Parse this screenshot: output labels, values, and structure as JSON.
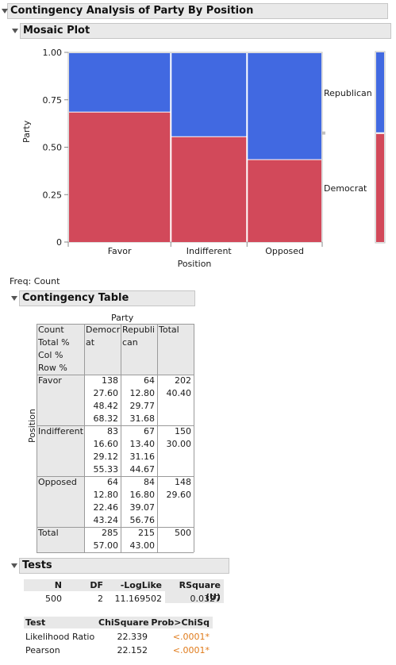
{
  "report": {
    "title": "Contingency Analysis of Party By Position",
    "mosaic": {
      "header": "Mosaic Plot",
      "y_axis_label": "Party",
      "x_axis_label": "Position",
      "y_ticks": [
        "1.00",
        "0.75",
        "0.50",
        "0.25",
        "0"
      ],
      "legend_labels": [
        "Republican",
        "Democrat"
      ],
      "colors": {
        "Democrat": "#d2495a",
        "Republican": "#4169e1"
      }
    },
    "freq_label": "Freq: Count"
  },
  "chart_data": {
    "type": "mosaic",
    "xlabel": "Position",
    "ylabel": "Party",
    "ylim": [
      0,
      1
    ],
    "categories": [
      "Favor",
      "Indifferent",
      "Opposed"
    ],
    "category_widths": [
      0.404,
      0.3,
      0.296
    ],
    "series": [
      {
        "name": "Democrat",
        "values": [
          0.6832,
          0.5533,
          0.4324
        ]
      },
      {
        "name": "Republican",
        "values": [
          0.3168,
          0.4467,
          0.5676
        ]
      }
    ],
    "marginal": {
      "Democrat": 0.57,
      "Republican": 0.43
    }
  },
  "contingency": {
    "header": "Contingency Table",
    "col_var": "Party",
    "row_var": "Position",
    "stat_labels": [
      "Count",
      "Total %",
      "Col %",
      "Row %"
    ],
    "col_headers": [
      [
        "Democr",
        "at"
      ],
      [
        "Republi",
        "can"
      ],
      [
        "Total"
      ]
    ],
    "rows": [
      {
        "label": "Favor",
        "dem": [
          "138",
          "27.60",
          "48.42",
          "68.32"
        ],
        "rep": [
          "64",
          "12.80",
          "29.77",
          "31.68"
        ],
        "total": [
          "202",
          "40.40"
        ]
      },
      {
        "label": "Indifferent",
        "dem": [
          "83",
          "16.60",
          "29.12",
          "55.33"
        ],
        "rep": [
          "67",
          "13.40",
          "31.16",
          "44.67"
        ],
        "total": [
          "150",
          "30.00"
        ]
      },
      {
        "label": "Opposed",
        "dem": [
          "64",
          "12.80",
          "22.46",
          "43.24"
        ],
        "rep": [
          "84",
          "16.80",
          "39.07",
          "56.76"
        ],
        "total": [
          "148",
          "29.60"
        ]
      }
    ],
    "total_row": {
      "label": "Total",
      "dem": [
        "285",
        "57.00"
      ],
      "rep": [
        "215",
        "43.00"
      ],
      "total": [
        "500"
      ]
    }
  },
  "tests": {
    "header": "Tests",
    "summary_headers": [
      "N",
      "DF",
      "-LogLike",
      "RSquare (U)"
    ],
    "summary_values": [
      "500",
      "2",
      "11.169502",
      "0.0327"
    ],
    "test_headers": [
      "Test",
      "ChiSquare",
      "Prob>ChiSq"
    ],
    "test_rows": [
      {
        "name": "Likelihood Ratio",
        "chisq": "22.339",
        "prob": "<.0001*"
      },
      {
        "name": "Pearson",
        "chisq": "22.152",
        "prob": "<.0001*"
      }
    ],
    "significant_color": "#e07b1b"
  }
}
